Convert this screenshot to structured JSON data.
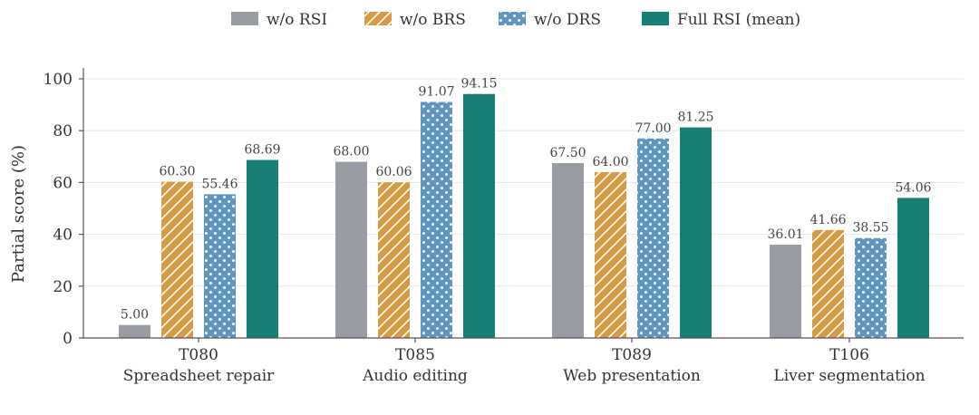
{
  "chart_data": {
    "type": "bar",
    "title": "",
    "ylabel": "Partial score (%)",
    "xlabel": "",
    "ylim": [
      0,
      100
    ],
    "yticks": [
      0,
      20,
      40,
      60,
      80,
      100
    ],
    "grid": "horizontal",
    "legend_position": "top-center",
    "categories": [
      {
        "code": "T080",
        "name": "Spreadsheet repair"
      },
      {
        "code": "T085",
        "name": "Audio editing"
      },
      {
        "code": "T089",
        "name": "Web presentation"
      },
      {
        "code": "T106",
        "name": "Liver segmentation"
      }
    ],
    "series": [
      {
        "name": "w/o RSI",
        "color": "#999da3",
        "pattern": "solid",
        "values": [
          5.0,
          68.0,
          67.5,
          36.01
        ]
      },
      {
        "name": "w/o BRS",
        "color": "#d69b43",
        "pattern": "diagonal-hatch",
        "values": [
          60.3,
          60.06,
          64.0,
          41.66
        ]
      },
      {
        "name": "w/o DRS",
        "color": "#5f96c0",
        "pattern": "dots",
        "values": [
          55.46,
          91.07,
          77.0,
          38.55
        ]
      },
      {
        "name": "Full RSI (mean)",
        "color": "#177f76",
        "pattern": "solid",
        "values": [
          68.69,
          94.15,
          81.25,
          54.06
        ]
      }
    ],
    "value_labels": [
      [
        "5.00",
        "68.00",
        "67.50",
        "36.01"
      ],
      [
        "60.30",
        "60.06",
        "64.00",
        "41.66"
      ],
      [
        "55.46",
        "91.07",
        "77.00",
        "38.55"
      ],
      [
        "68.69",
        "94.15",
        "81.25",
        "54.06"
      ]
    ]
  }
}
